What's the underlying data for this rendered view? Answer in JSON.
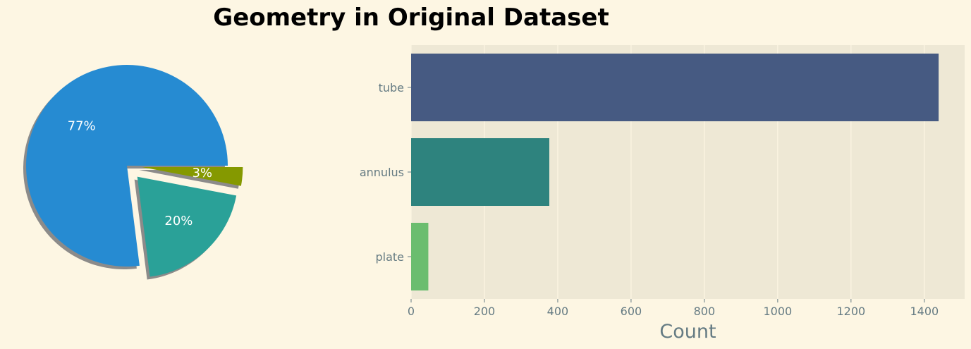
{
  "figure": {
    "title": "Geometry in Original Dataset",
    "background": "#fdf6e3",
    "axes_background": "#eee8d5",
    "grid_color": "#fdf6e3",
    "tick_color": "#657b83"
  },
  "chart_data": [
    {
      "type": "pie",
      "title": "",
      "labels": [
        "77%",
        "20%",
        "3%"
      ],
      "values": [
        77,
        20,
        3
      ],
      "colors": [
        "#268bd2",
        "#2aa198",
        "#859900"
      ],
      "exploded": [
        false,
        true,
        true
      ],
      "shadow": true
    },
    {
      "type": "bar",
      "orientation": "horizontal",
      "title": "",
      "categories": [
        "tube",
        "annulus",
        "plate"
      ],
      "values": [
        1439,
        377,
        47
      ],
      "colors": [
        "#465a82",
        "#2e837e",
        "#6bbd6f"
      ],
      "xlabel": "Count",
      "ylabel": "",
      "xlim": [
        0,
        1510
      ],
      "xticks": [
        0,
        200,
        400,
        600,
        800,
        1000,
        1200,
        1400
      ],
      "grid": "vertical"
    }
  ]
}
